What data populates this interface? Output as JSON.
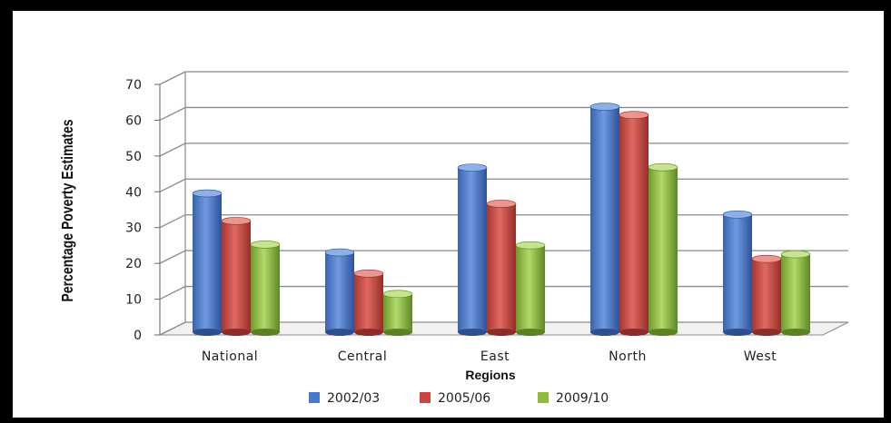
{
  "chart_data": {
    "type": "bar",
    "title": "",
    "xlabel": "Regions",
    "ylabel": "Percentage Poverty Estimates",
    "ylim": [
      0,
      70
    ],
    "yticks": [
      0,
      10,
      20,
      30,
      40,
      50,
      60,
      70
    ],
    "grid": true,
    "legend_position": "bottom",
    "categories": [
      "National",
      "Central",
      "East",
      "North",
      "West"
    ],
    "series": [
      {
        "name": "2002/03",
        "color": "#4a78c8",
        "values": [
          38.8,
          22.3,
          46.0,
          63.0,
          32.9
        ]
      },
      {
        "name": "2005/06",
        "color": "#c8463f",
        "values": [
          31.1,
          16.4,
          35.9,
          60.7,
          20.5
        ]
      },
      {
        "name": "2009/10",
        "color": "#8dbb3d",
        "values": [
          24.5,
          10.7,
          24.3,
          46.1,
          21.8
        ]
      }
    ]
  }
}
